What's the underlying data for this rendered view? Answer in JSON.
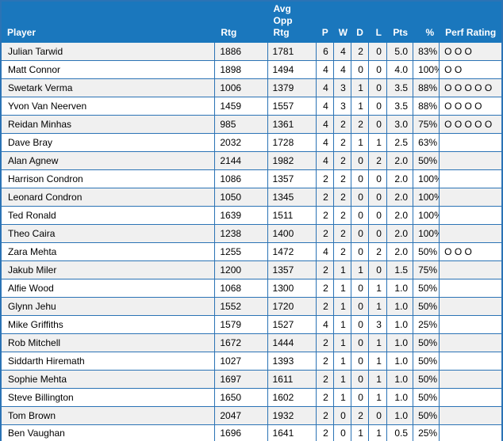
{
  "theme": {
    "header_bg": "#1a77bd",
    "header_text": "#ffffff",
    "border_color": "#2b73b5",
    "stripe_bg": "#f0f0f0",
    "row_bg": "#ffffff",
    "text_color": "#000000"
  },
  "table": {
    "columns": [
      {
        "key": "player",
        "label": "Player",
        "align": "left"
      },
      {
        "key": "rtg",
        "label": "Rtg",
        "align": "left"
      },
      {
        "key": "avg_opp_rtg",
        "label": "Avg\nOpp\nRtg",
        "align": "left"
      },
      {
        "key": "p",
        "label": "P",
        "align": "right"
      },
      {
        "key": "w",
        "label": "W",
        "align": "right"
      },
      {
        "key": "d",
        "label": "D",
        "align": "right"
      },
      {
        "key": "l",
        "label": "L",
        "align": "right"
      },
      {
        "key": "pts",
        "label": "Pts",
        "align": "right"
      },
      {
        "key": "pct",
        "label": "%",
        "align": "right"
      },
      {
        "key": "perf_rating",
        "label": "Perf Rating",
        "align": "left"
      }
    ],
    "rows": [
      {
        "player": "Julian Tarwid",
        "rtg": "1886",
        "avg_opp_rtg": "1781",
        "p": "6",
        "w": "4",
        "d": "2",
        "l": "0",
        "pts": "5.0",
        "pct": "83%",
        "perf_rating": "O O O"
      },
      {
        "player": "Matt Connor",
        "rtg": "1898",
        "avg_opp_rtg": "1494",
        "p": "4",
        "w": "4",
        "d": "0",
        "l": "0",
        "pts": "4.0",
        "pct": "100%",
        "perf_rating": "O O"
      },
      {
        "player": "Swetark Verma",
        "rtg": "1006",
        "avg_opp_rtg": "1379",
        "p": "4",
        "w": "3",
        "d": "1",
        "l": "0",
        "pts": "3.5",
        "pct": "88%",
        "perf_rating": "O O O O O"
      },
      {
        "player": "Yvon Van Neerven",
        "rtg": "1459",
        "avg_opp_rtg": "1557",
        "p": "4",
        "w": "3",
        "d": "1",
        "l": "0",
        "pts": "3.5",
        "pct": "88%",
        "perf_rating": "O O O O"
      },
      {
        "player": "Reidan Minhas",
        "rtg": "985",
        "avg_opp_rtg": "1361",
        "p": "4",
        "w": "2",
        "d": "2",
        "l": "0",
        "pts": "3.0",
        "pct": "75%",
        "perf_rating": "O O O O O"
      },
      {
        "player": "Dave Bray",
        "rtg": "2032",
        "avg_opp_rtg": "1728",
        "p": "4",
        "w": "2",
        "d": "1",
        "l": "1",
        "pts": "2.5",
        "pct": "63%",
        "perf_rating": ""
      },
      {
        "player": "Alan Agnew",
        "rtg": "2144",
        "avg_opp_rtg": "1982",
        "p": "4",
        "w": "2",
        "d": "0",
        "l": "2",
        "pts": "2.0",
        "pct": "50%",
        "perf_rating": ""
      },
      {
        "player": "Harrison Condron",
        "rtg": "1086",
        "avg_opp_rtg": "1357",
        "p": "2",
        "w": "2",
        "d": "0",
        "l": "0",
        "pts": "2.0",
        "pct": "100%",
        "perf_rating": ""
      },
      {
        "player": "Leonard Condron",
        "rtg": "1050",
        "avg_opp_rtg": "1345",
        "p": "2",
        "w": "2",
        "d": "0",
        "l": "0",
        "pts": "2.0",
        "pct": "100%",
        "perf_rating": ""
      },
      {
        "player": "Ted Ronald",
        "rtg": "1639",
        "avg_opp_rtg": "1511",
        "p": "2",
        "w": "2",
        "d": "0",
        "l": "0",
        "pts": "2.0",
        "pct": "100%",
        "perf_rating": ""
      },
      {
        "player": "Theo Caira",
        "rtg": "1238",
        "avg_opp_rtg": "1400",
        "p": "2",
        "w": "2",
        "d": "0",
        "l": "0",
        "pts": "2.0",
        "pct": "100%",
        "perf_rating": ""
      },
      {
        "player": "Zara Mehta",
        "rtg": "1255",
        "avg_opp_rtg": "1472",
        "p": "4",
        "w": "2",
        "d": "0",
        "l": "2",
        "pts": "2.0",
        "pct": "50%",
        "perf_rating": "O O O"
      },
      {
        "player": "Jakub Miler",
        "rtg": "1200",
        "avg_opp_rtg": "1357",
        "p": "2",
        "w": "1",
        "d": "1",
        "l": "0",
        "pts": "1.5",
        "pct": "75%",
        "perf_rating": ""
      },
      {
        "player": "Alfie Wood",
        "rtg": "1068",
        "avg_opp_rtg": "1300",
        "p": "2",
        "w": "1",
        "d": "0",
        "l": "1",
        "pts": "1.0",
        "pct": "50%",
        "perf_rating": ""
      },
      {
        "player": "Glynn Jehu",
        "rtg": "1552",
        "avg_opp_rtg": "1720",
        "p": "2",
        "w": "1",
        "d": "0",
        "l": "1",
        "pts": "1.0",
        "pct": "50%",
        "perf_rating": ""
      },
      {
        "player": "Mike Griffiths",
        "rtg": "1579",
        "avg_opp_rtg": "1527",
        "p": "4",
        "w": "1",
        "d": "0",
        "l": "3",
        "pts": "1.0",
        "pct": "25%",
        "perf_rating": ""
      },
      {
        "player": "Rob Mitchell",
        "rtg": "1672",
        "avg_opp_rtg": "1444",
        "p": "2",
        "w": "1",
        "d": "0",
        "l": "1",
        "pts": "1.0",
        "pct": "50%",
        "perf_rating": ""
      },
      {
        "player": "Siddarth Hiremath",
        "rtg": "1027",
        "avg_opp_rtg": "1393",
        "p": "2",
        "w": "1",
        "d": "0",
        "l": "1",
        "pts": "1.0",
        "pct": "50%",
        "perf_rating": ""
      },
      {
        "player": "Sophie Mehta",
        "rtg": "1697",
        "avg_opp_rtg": "1611",
        "p": "2",
        "w": "1",
        "d": "0",
        "l": "1",
        "pts": "1.0",
        "pct": "50%",
        "perf_rating": ""
      },
      {
        "player": "Steve Billington",
        "rtg": "1650",
        "avg_opp_rtg": "1602",
        "p": "2",
        "w": "1",
        "d": "0",
        "l": "1",
        "pts": "1.0",
        "pct": "50%",
        "perf_rating": ""
      },
      {
        "player": "Tom Brown",
        "rtg": "2047",
        "avg_opp_rtg": "1932",
        "p": "2",
        "w": "0",
        "d": "2",
        "l": "0",
        "pts": "1.0",
        "pct": "50%",
        "perf_rating": ""
      },
      {
        "player": "Ben Vaughan",
        "rtg": "1696",
        "avg_opp_rtg": "1641",
        "p": "2",
        "w": "0",
        "d": "1",
        "l": "1",
        "pts": "0.5",
        "pct": "25%",
        "perf_rating": ""
      }
    ]
  }
}
